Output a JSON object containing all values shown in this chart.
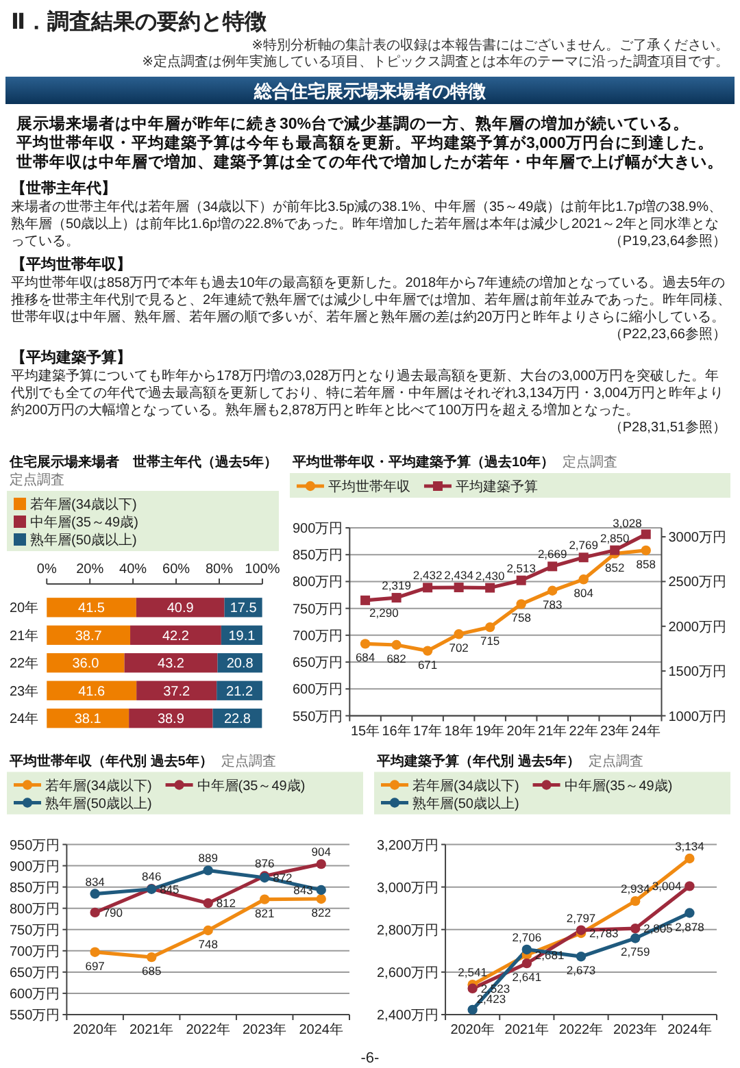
{
  "chart_data": [
    {
      "type": "other",
      "title": "Ⅱ．調査結果の要約と特徴",
      "subtitle": "総合住宅展示場来場者の特徴",
      "annotations": [
        "※特別分析軸の集計表の収録は本報告書にはございません。ご了承ください。",
        "※定点調査は例年実施している項目、トピックス調査とは本年のテーマに沿った調査項目です。",
        "展示場来場者は中年層が昨年に続き30%台で減少基調の一方、熟年層の増加が続いている。",
        "平均世帯年収・平均建築予算は今年も最高額を更新。平均建築予算が3,000万円台に到達した。",
        "世帯年収は中年層で増加、建築予算は全ての年代で増加したが若年・中年層で上げ幅が大きい。",
        "【世帯主年代】",
        "来場者の世帯主年代は若年層（34歳以下）が前年比3.5p減の38.1%、中年層（35～49歳）は前年比1.7p増の38.9%、熟年層（50歳以上）は前年比1.6p増の22.8%であった。昨年増加した若年層は本年は減少し2021～2年と同水準となっている。",
        "（P19,23,64参照）",
        "【平均世帯年収】",
        "平均世帯年収は858万円で本年も過去10年の最高額を更新した。2018年から7年連続の増加となっている。過去5年の推移を世帯主年代別で見ると、2年連続で熟年層では減少し中年層では増加、若年層は前年並みであった。昨年同様、世帯年収は中年層、熟年層、若年層の順で多いが、若年層と熟年層の差は約20万円と昨年よりさらに縮小している。",
        "（P22,23,66参照）",
        "【平均建築予算】",
        "平均建築予算についても昨年から178万円増の3,028万円となり過去最高額を更新、大台の3,000万円を突破した。年代別でも全ての年代で過去最高額を更新しており、特に若年層・中年層はそれぞれ3,134万円・3,004万円と昨年より約200万円の大幅増となっている。熟年層も2,878万円と昨年と比べて100万円を超える増加となった。",
        "（P28,31,51参照）",
        "-6-"
      ]
    },
    {
      "type": "bar",
      "orientation": "horizontal",
      "stacked": true,
      "title": "住宅展示場来場者　世帯主年代（過去5年）",
      "subtitle": "定点調査",
      "legend": "top",
      "categories": [
        "20年",
        "21年",
        "22年",
        "23年",
        "24年"
      ],
      "xlim": [
        0,
        100
      ],
      "xticks": [
        {
          "value": 0,
          "label": "0%"
        },
        {
          "value": 20,
          "label": "20%"
        },
        {
          "value": 40,
          "label": "40%"
        },
        {
          "value": 60,
          "label": "60%"
        },
        {
          "value": 80,
          "label": "80%"
        },
        {
          "value": 100,
          "label": "100%"
        }
      ],
      "series": [
        {
          "name": "若年層(34歳以下)",
          "color": "#ee7f00",
          "values": [
            41.5,
            38.7,
            36.0,
            41.6,
            38.1
          ],
          "value_labels": [
            "41.5",
            "38.7",
            "36.0",
            "41.6",
            "38.1"
          ]
        },
        {
          "name": "中年層(35～49歳)",
          "color": "#9e2a3c",
          "values": [
            40.9,
            42.2,
            43.2,
            37.2,
            38.9
          ],
          "value_labels": [
            "40.9",
            "42.2",
            "43.2",
            "37.2",
            "38.9"
          ]
        },
        {
          "name": "熟年層(50歳以上)",
          "color": "#1f5a7e",
          "values": [
            17.5,
            19.1,
            20.8,
            21.2,
            22.8
          ],
          "value_labels": [
            "17.5",
            "19.1",
            "20.8",
            "21.2",
            "22.8"
          ]
        }
      ]
    },
    {
      "type": "line",
      "title": "平均世帯年収・平均建築予算（過去10年）",
      "subtitle": "定点調査",
      "legend": "top",
      "grid": "y",
      "categories": [
        "15年",
        "16年",
        "17年",
        "18年",
        "19年",
        "20年",
        "21年",
        "22年",
        "23年",
        "24年"
      ],
      "ylim": [
        550,
        900
      ],
      "yticks": [
        {
          "value": 550,
          "label": "550万円"
        },
        {
          "value": 600,
          "label": "600万円"
        },
        {
          "value": 650,
          "label": "650万円"
        },
        {
          "value": 700,
          "label": "700万円"
        },
        {
          "value": 750,
          "label": "750万円"
        },
        {
          "value": 800,
          "label": "800万円"
        },
        {
          "value": 850,
          "label": "850万円"
        },
        {
          "value": 900,
          "label": "900万円"
        }
      ],
      "y2lim": [
        1000,
        3100
      ],
      "y2ticks": [
        {
          "value": 1000,
          "label": "1000万円"
        },
        {
          "value": 1500,
          "label": "1500万円"
        },
        {
          "value": 2000,
          "label": "2000万円"
        },
        {
          "value": 2500,
          "label": "2500万円"
        },
        {
          "value": 3000,
          "label": "3000万円"
        }
      ],
      "series": [
        {
          "name": "平均世帯年収",
          "color": "#f08a12",
          "marker": "circle",
          "values": [
            684,
            682,
            671,
            702,
            715,
            758,
            783,
            804,
            852,
            858
          ],
          "value_labels": [
            "684",
            "682",
            "671",
            "702",
            "715",
            "758",
            "783",
            "804",
            "852",
            "858"
          ]
        },
        {
          "name": "平均建築予算",
          "color": "#9e2a3c",
          "marker": "square",
          "axis": "y2",
          "values": [
            2290,
            2319,
            2432,
            2434,
            2430,
            2513,
            2669,
            2769,
            2850,
            3028
          ],
          "value_labels": [
            "2,290",
            "2,319",
            "2,432",
            "2,434",
            "2,430",
            "2,513",
            "2,669",
            "2,769",
            "2,850",
            "3,028"
          ]
        }
      ]
    },
    {
      "type": "line",
      "title": "平均世帯年収（年代別 過去5年）",
      "subtitle": "定点調査",
      "legend": "top",
      "grid": "y",
      "marker": "circle",
      "categories": [
        "2020年",
        "2021年",
        "2022年",
        "2023年",
        "2024年"
      ],
      "ylim": [
        550,
        950
      ],
      "yticks": [
        {
          "value": 550,
          "label": "550万円"
        },
        {
          "value": 600,
          "label": "600万円"
        },
        {
          "value": 650,
          "label": "650万円"
        },
        {
          "value": 700,
          "label": "700万円"
        },
        {
          "value": 750,
          "label": "750万円"
        },
        {
          "value": 800,
          "label": "800万円"
        },
        {
          "value": 850,
          "label": "850万円"
        },
        {
          "value": 900,
          "label": "900万円"
        },
        {
          "value": 950,
          "label": "950万円"
        }
      ],
      "series": [
        {
          "name": "若年層(34歳以下)",
          "color": "#f08a12",
          "values": [
            697,
            685,
            748,
            821,
            822
          ],
          "value_labels": [
            "697",
            "685",
            "748",
            "821",
            "822"
          ]
        },
        {
          "name": "中年層(35～49歳)",
          "color": "#9e2a3c",
          "values": [
            790,
            846,
            812,
            876,
            904
          ],
          "value_labels": [
            "790",
            "846",
            "812",
            "876",
            "904"
          ]
        },
        {
          "name": "熟年層(50歳以上)",
          "color": "#1f5a7e",
          "values": [
            834,
            845,
            889,
            872,
            843
          ],
          "value_labels": [
            "834",
            "845",
            "889",
            "872",
            "843"
          ]
        }
      ]
    },
    {
      "type": "line",
      "title": "平均建築予算（年代別 過去5年）",
      "subtitle": "定点調査",
      "legend": "top",
      "grid": "y",
      "marker": "circle",
      "categories": [
        "2020年",
        "2021年",
        "2022年",
        "2023年",
        "2024年"
      ],
      "ylim": [
        2400,
        3200
      ],
      "yticks": [
        {
          "value": 2400,
          "label": "2,400万円"
        },
        {
          "value": 2600,
          "label": "2,600万円"
        },
        {
          "value": 2800,
          "label": "2,800万円"
        },
        {
          "value": 3000,
          "label": "3,000万円"
        },
        {
          "value": 3200,
          "label": "3,200万円"
        }
      ],
      "series": [
        {
          "name": "若年層(34歳以下)",
          "color": "#f08a12",
          "values": [
            2541,
            2681,
            2783,
            2934,
            3134
          ],
          "value_labels": [
            "2,541",
            "2,681",
            "2,783",
            "2,934",
            "3,134"
          ]
        },
        {
          "name": "中年層(35～49歳)",
          "color": "#9e2a3c",
          "values": [
            2523,
            2641,
            2797,
            2805,
            3004
          ],
          "value_labels": [
            "2,523",
            "2,641",
            "2,797",
            "2,805",
            "3,004"
          ]
        },
        {
          "name": "熟年層(50歳以上)",
          "color": "#1f5a7e",
          "values": [
            2423,
            2706,
            2673,
            2759,
            2878
          ],
          "value_labels": [
            "2,423",
            "2,706",
            "2,673",
            "2,759",
            "2,878"
          ]
        }
      ]
    }
  ]
}
